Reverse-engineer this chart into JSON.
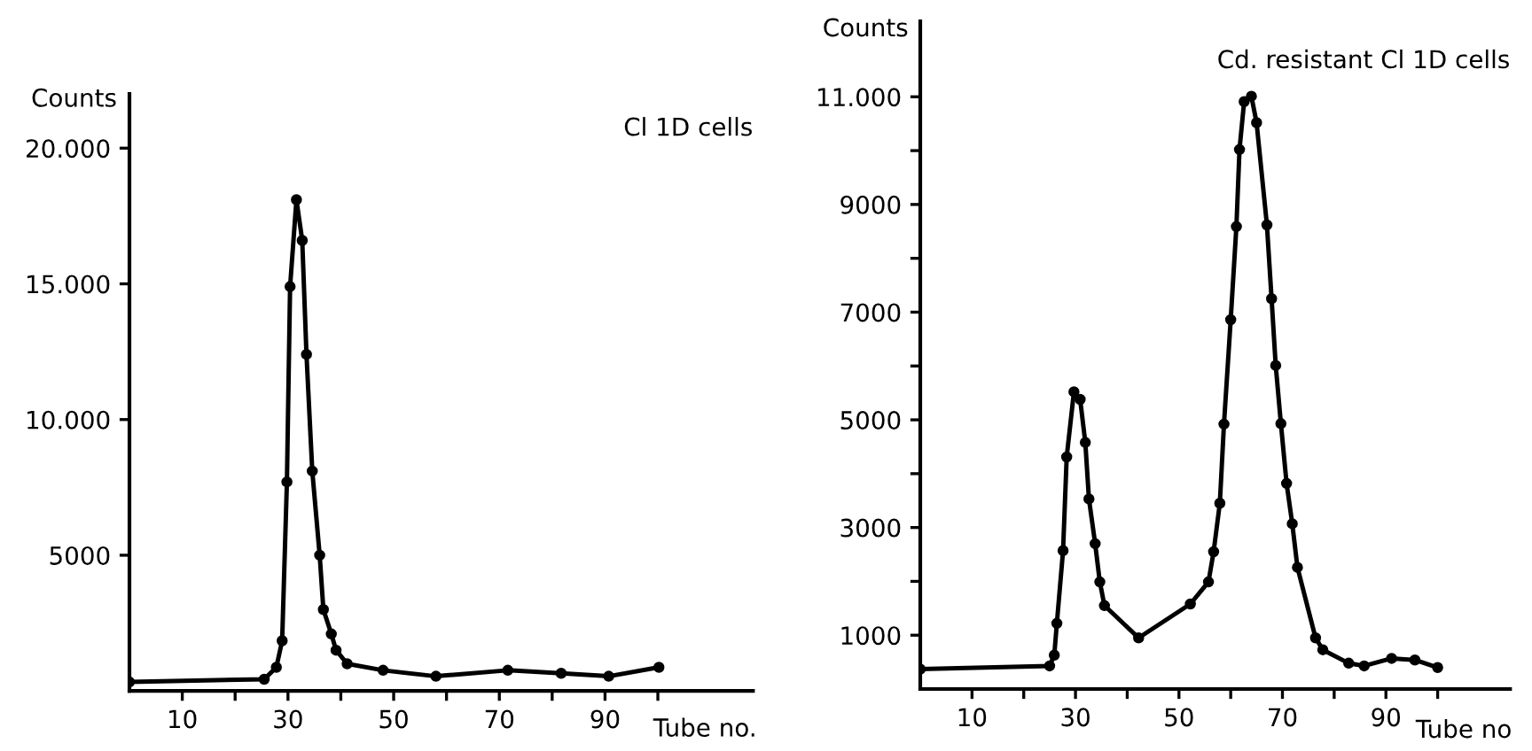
{
  "chart_data": [
    {
      "type": "line",
      "title": "Cl 1D cells",
      "xlabel": "Tube no.",
      "ylabel": "Counts",
      "marker": "circle",
      "grid": false,
      "xlim": [
        0,
        118
      ],
      "xticks": [
        10,
        {
          "value": 20,
          "label": null
        },
        30,
        {
          "value": 40,
          "label": null
        },
        50,
        {
          "value": 60,
          "label": null
        },
        70,
        {
          "value": 80,
          "label": null
        },
        90,
        {
          "value": 100,
          "label": null
        }
      ],
      "ylim": [
        0,
        22000
      ],
      "yticks": [
        5000,
        {
          "value": 10000,
          "label": "10.000"
        },
        {
          "value": 15000,
          "label": "15.000"
        },
        {
          "value": 20000,
          "label": "20.000"
        }
      ],
      "series": [
        {
          "color": "#000000",
          "x": [
            0,
            25.5,
            27.8,
            28.9,
            29.8,
            30.4,
            31.6,
            32.7,
            33.5,
            34.6,
            36.0,
            36.7,
            38.2,
            39.1,
            41.2,
            48,
            58,
            71.6,
            81.7,
            90.7,
            100.2
          ],
          "values": [
            330,
            430,
            870,
            1850,
            7700,
            14900,
            18100,
            16600,
            12400,
            8100,
            5000,
            3000,
            2100,
            1500,
            1000,
            760,
            540,
            760,
            650,
            540,
            870
          ]
        }
      ]
    },
    {
      "type": "line",
      "title": "Cd. resistant Cl 1D cells",
      "xlabel": "Tube no",
      "ylabel": "Counts",
      "marker": "circle",
      "grid": false,
      "xlim": [
        0,
        114
      ],
      "xticks": [
        10,
        {
          "value": 20,
          "label": null
        },
        30,
        {
          "value": 40,
          "label": null
        },
        50,
        {
          "value": 60,
          "label": null
        },
        70,
        {
          "value": 80,
          "label": null
        },
        90,
        {
          "value": 100,
          "label": null
        }
      ],
      "ylim": [
        0,
        12400
      ],
      "yticks": [
        1000,
        {
          "value": 2000,
          "label": null
        },
        3000,
        {
          "value": 4000,
          "label": null
        },
        5000,
        {
          "value": 6000,
          "label": null
        },
        7000,
        {
          "value": 8000,
          "label": null
        },
        9000,
        {
          "value": 10000,
          "label": null
        },
        {
          "value": 11000,
          "label": "11.000"
        }
      ],
      "series": [
        {
          "color": "#000000",
          "x": [
            0,
            25,
            25.9,
            26.4,
            27.6,
            28.3,
            29.7,
            30.9,
            31.9,
            32.6,
            33.8,
            34.7,
            35.6,
            42.2,
            52.2,
            55.7,
            56.7,
            57.9,
            58.7,
            60,
            61.1,
            61.7,
            62.6,
            64,
            65,
            67,
            67.9,
            68.7,
            69.7,
            70.8,
            71.9,
            72.9,
            76.4,
            77.8,
            82.8,
            85.8,
            91.1,
            95.6,
            100
          ],
          "values": [
            370,
            430,
            630,
            1220,
            2570,
            4310,
            5520,
            5380,
            4580,
            3530,
            2700,
            1990,
            1550,
            950,
            1580,
            1990,
            2550,
            3450,
            4920,
            6860,
            8590,
            10020,
            10910,
            11010,
            10520,
            8620,
            7250,
            6010,
            4930,
            3820,
            3070,
            2260,
            950,
            730,
            480,
            430,
            570,
            540,
            400
          ]
        }
      ]
    }
  ]
}
